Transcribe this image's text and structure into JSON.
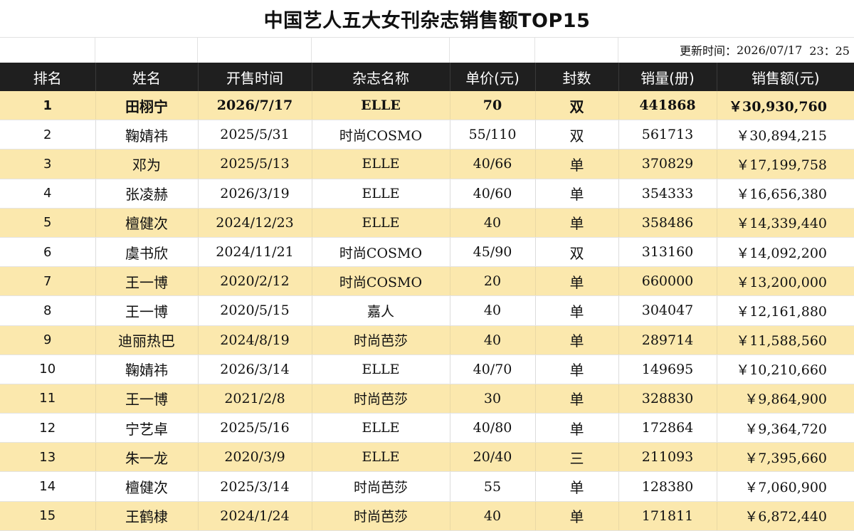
{
  "title": "中国艺人五大女刊杂志销售额TOP15",
  "update_label": "更新时间：",
  "update_date": "2026/07/17",
  "update_time": "23：25",
  "columns": [
    "排名",
    "姓名",
    "开售时间",
    "杂志名称",
    "单价(元)",
    "封数",
    "销量(册)",
    "销售额(元)"
  ],
  "rows": [
    {
      "rank": "1",
      "name": "田栩宁",
      "date": "2026/7/17",
      "magazine": "ELLE",
      "price": "70",
      "covers": "双",
      "sales": "441868",
      "amount": "￥30,930,760"
    },
    {
      "rank": "2",
      "name": "鞠婧祎",
      "date": "2025/5/31",
      "magazine": "时尚COSMO",
      "price": "55/110",
      "covers": "双",
      "sales": "561713",
      "amount": "￥30,894,215"
    },
    {
      "rank": "3",
      "name": "邓为",
      "date": "2025/5/13",
      "magazine": "ELLE",
      "price": "40/66",
      "covers": "单",
      "sales": "370829",
      "amount": "￥17,199,758"
    },
    {
      "rank": "4",
      "name": "张凌赫",
      "date": "2026/3/19",
      "magazine": "ELLE",
      "price": "40/60",
      "covers": "单",
      "sales": "354333",
      "amount": "￥16,656,380"
    },
    {
      "rank": "5",
      "name": "檀健次",
      "date": "2024/12/23",
      "magazine": "ELLE",
      "price": "40",
      "covers": "单",
      "sales": "358486",
      "amount": "￥14,339,440"
    },
    {
      "rank": "6",
      "name": "虞书欣",
      "date": "2024/11/21",
      "magazine": "时尚COSMO",
      "price": "45/90",
      "covers": "双",
      "sales": "313160",
      "amount": "￥14,092,200"
    },
    {
      "rank": "7",
      "name": "王一博",
      "date": "2020/2/12",
      "magazine": "时尚COSMO",
      "price": "20",
      "covers": "单",
      "sales": "660000",
      "amount": "￥13,200,000"
    },
    {
      "rank": "8",
      "name": "王一博",
      "date": "2020/5/15",
      "magazine": "嘉人",
      "price": "40",
      "covers": "单",
      "sales": "304047",
      "amount": "￥12,161,880"
    },
    {
      "rank": "9",
      "name": "迪丽热巴",
      "date": "2024/8/19",
      "magazine": "时尚芭莎",
      "price": "40",
      "covers": "单",
      "sales": "289714",
      "amount": "￥11,588,560"
    },
    {
      "rank": "10",
      "name": "鞠婧祎",
      "date": "2026/3/14",
      "magazine": "ELLE",
      "price": "40/70",
      "covers": "单",
      "sales": "149695",
      "amount": "￥10,210,660"
    },
    {
      "rank": "11",
      "name": "王一博",
      "date": "2021/2/8",
      "magazine": "时尚芭莎",
      "price": "30",
      "covers": "单",
      "sales": "328830",
      "amount": "￥9,864,900"
    },
    {
      "rank": "12",
      "name": "宁艺卓",
      "date": "2025/5/16",
      "magazine": "ELLE",
      "price": "40/80",
      "covers": "单",
      "sales": "172864",
      "amount": "￥9,364,720"
    },
    {
      "rank": "13",
      "name": "朱一龙",
      "date": "2020/3/9",
      "magazine": "ELLE",
      "price": "20/40",
      "covers": "三",
      "sales": "211093",
      "amount": "￥7,395,660"
    },
    {
      "rank": "14",
      "name": "檀健次",
      "date": "2025/3/14",
      "magazine": "时尚芭莎",
      "price": "55",
      "covers": "单",
      "sales": "128380",
      "amount": "￥7,060,900"
    },
    {
      "rank": "15",
      "name": "王鹤棣",
      "date": "2024/1/24",
      "magazine": "时尚芭莎",
      "price": "40",
      "covers": "单",
      "sales": "171811",
      "amount": "￥6,872,440"
    }
  ]
}
